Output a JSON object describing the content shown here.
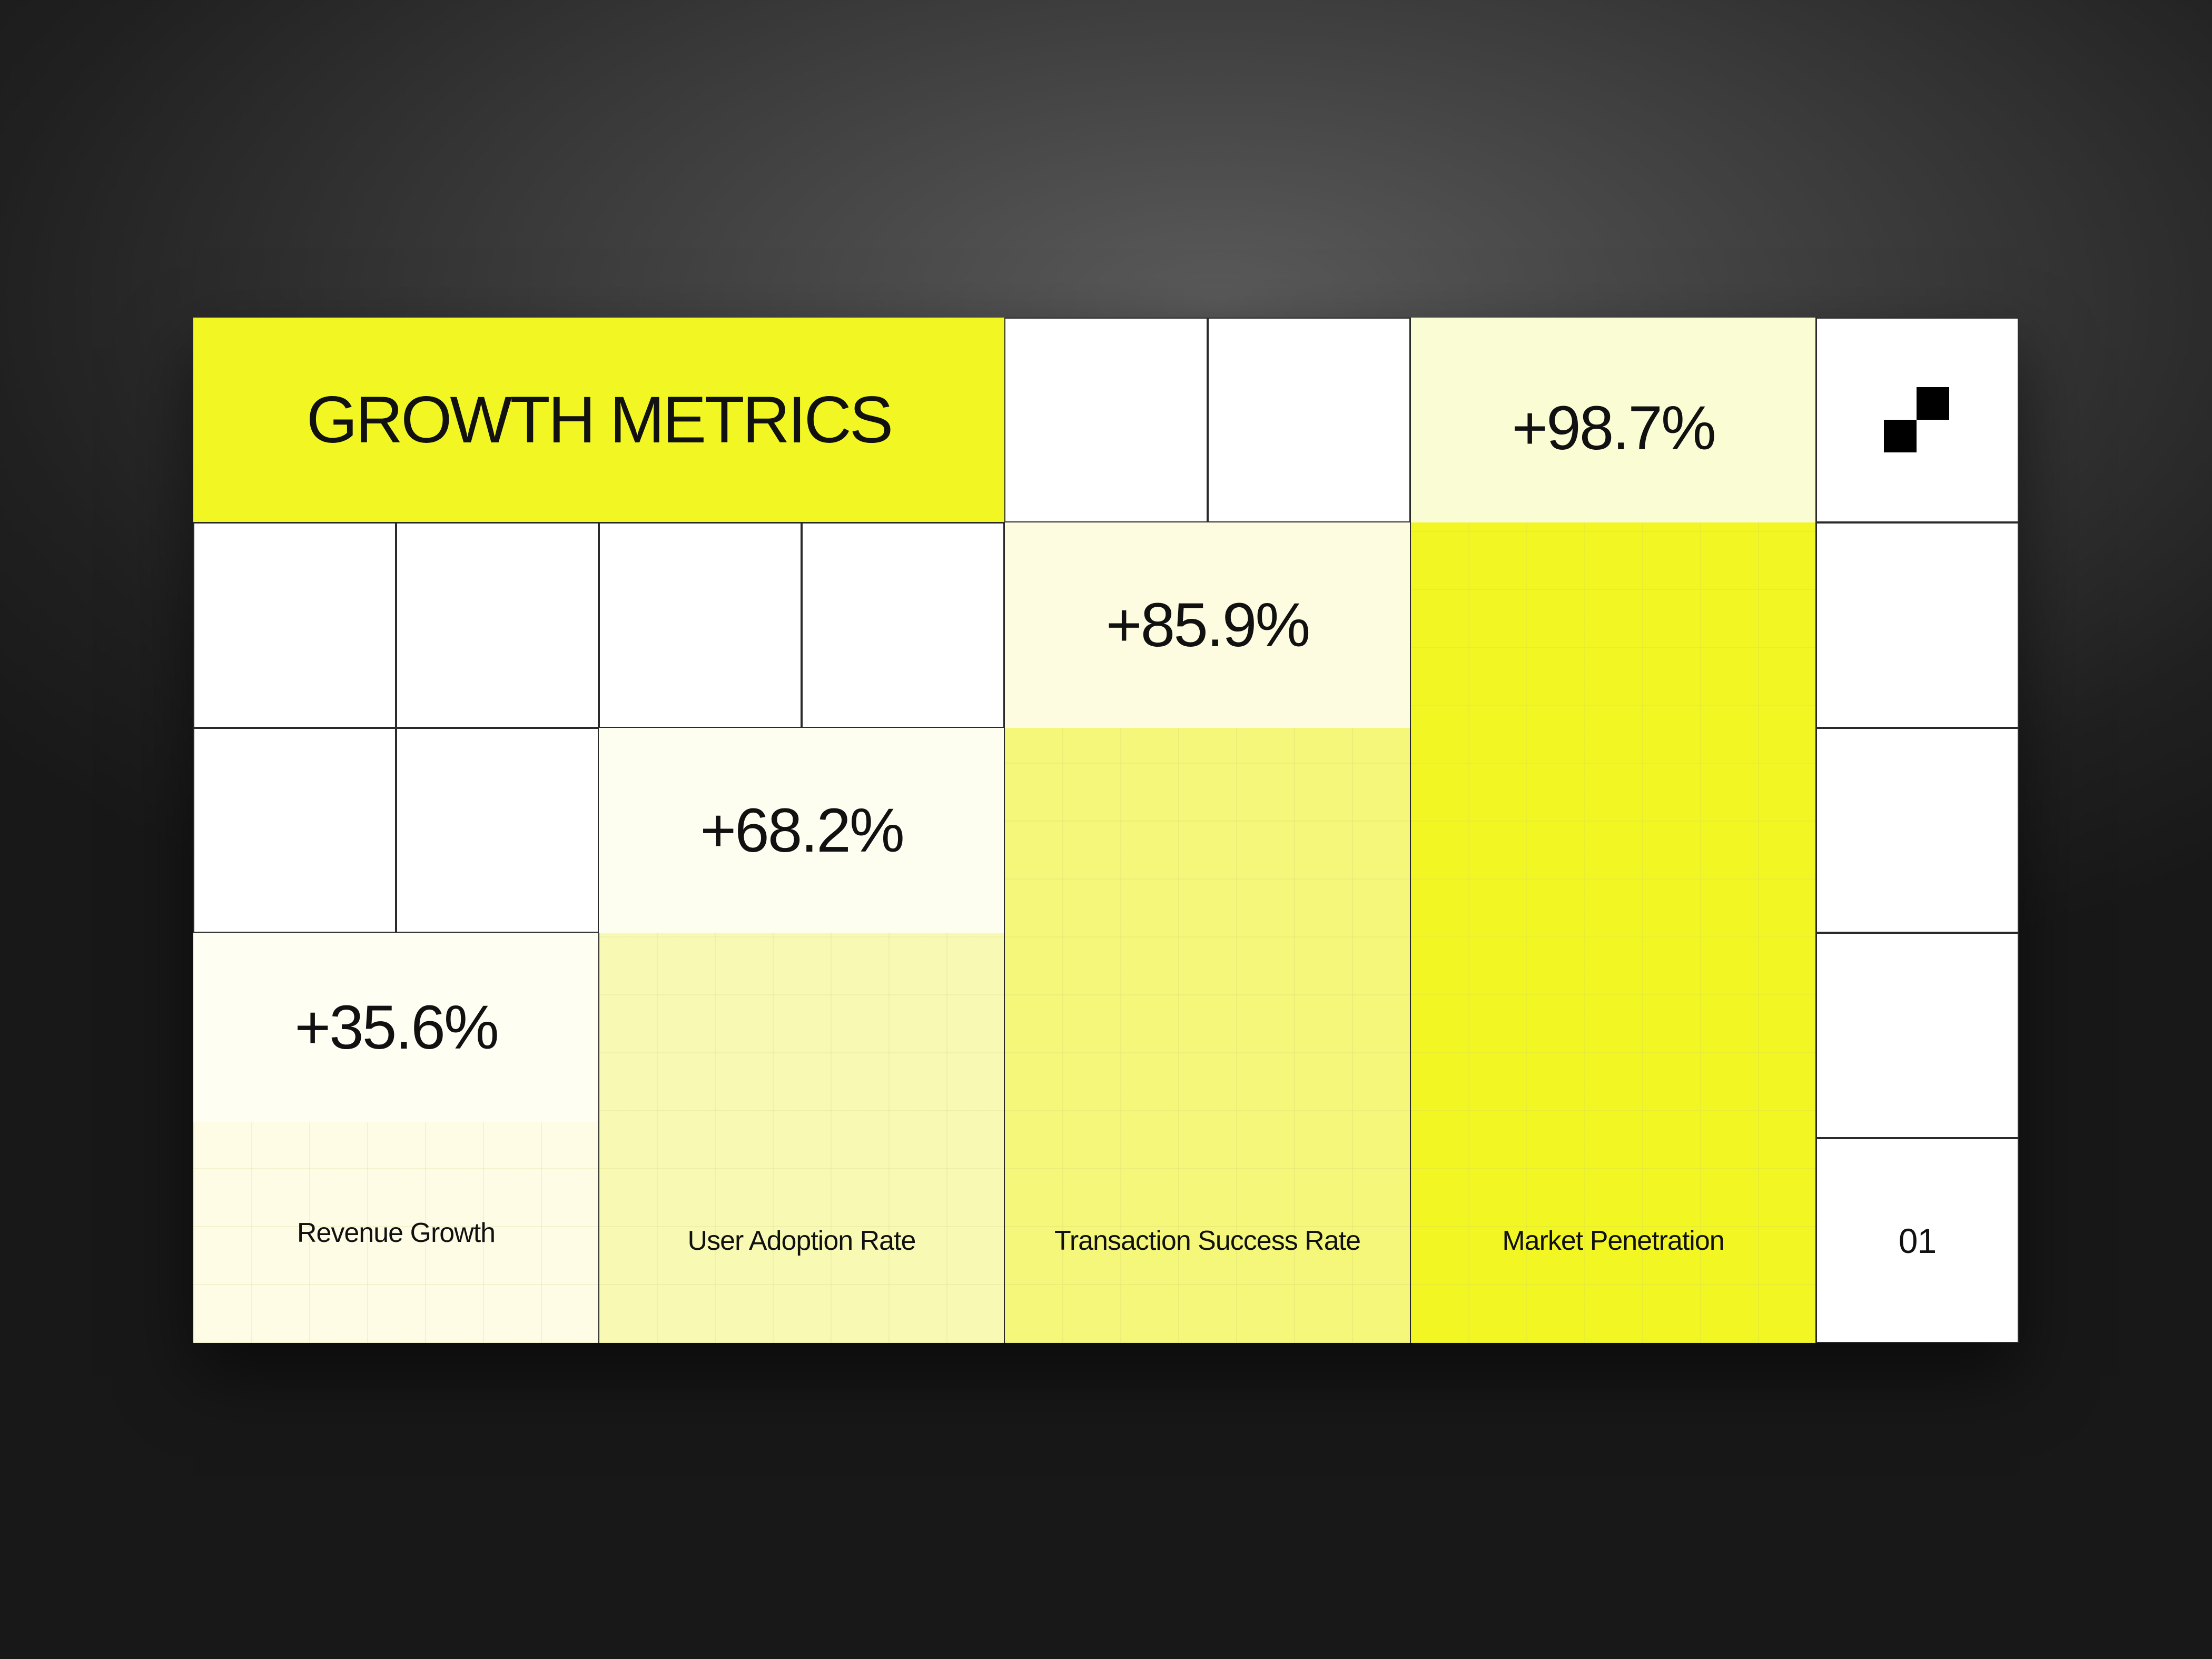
{
  "title": "GROWTH METRICS",
  "metrics": [
    {
      "label": "Revenue Growth",
      "value": "+35.6%"
    },
    {
      "label": "User Adoption Rate",
      "value": "+68.2%"
    },
    {
      "label": "Transaction Success Rate",
      "value": "+85.9%"
    },
    {
      "label": "Market Penetration",
      "value": "+98.7%"
    }
  ],
  "page_number": "01"
}
